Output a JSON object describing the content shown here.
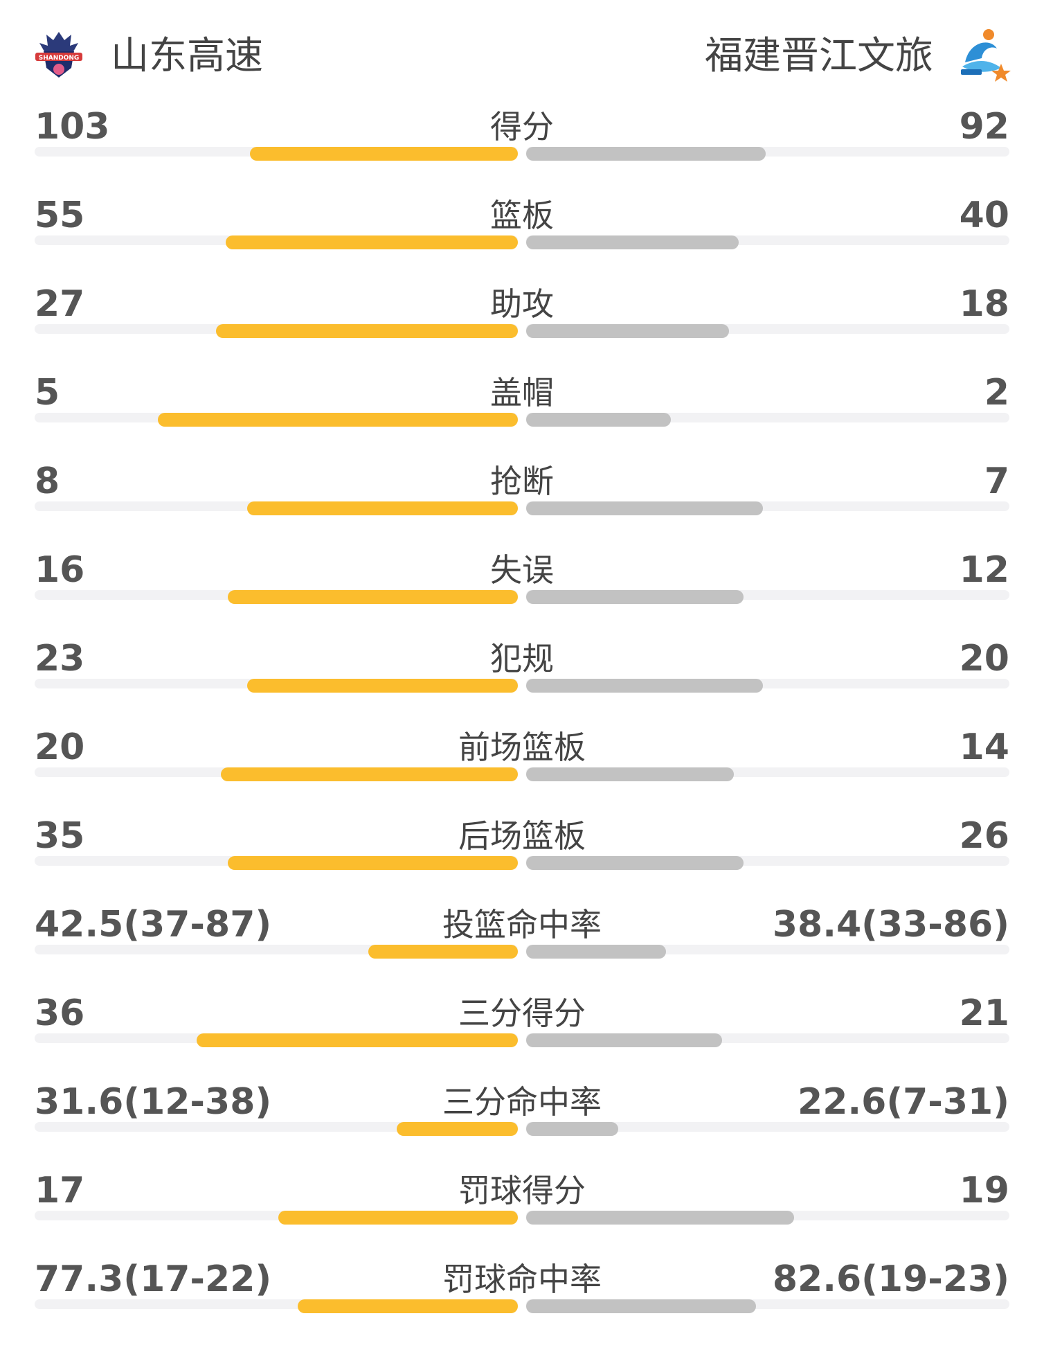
{
  "teams": {
    "home": {
      "name": "山东高速",
      "logo_icon": "shandong-dragon-logo",
      "color": "#fbbd2d"
    },
    "away": {
      "name": "福建晋江文旅",
      "logo_icon": "fujian-shark-logo",
      "color": "#c2c2c2"
    }
  },
  "stats": [
    {
      "label": "得分",
      "home": "103",
      "away": "92",
      "home_bar": 0.555,
      "away_bar": 0.495
    },
    {
      "label": "篮板",
      "home": "55",
      "away": "40",
      "home_bar": 0.605,
      "away_bar": 0.44
    },
    {
      "label": "助攻",
      "home": "27",
      "away": "18",
      "home_bar": 0.625,
      "away_bar": 0.42
    },
    {
      "label": "盖帽",
      "home": "5",
      "away": "2",
      "home_bar": 0.745,
      "away_bar": 0.3
    },
    {
      "label": "抢断",
      "home": "8",
      "away": "7",
      "home_bar": 0.56,
      "away_bar": 0.49
    },
    {
      "label": "失误",
      "home": "16",
      "away": "12",
      "home_bar": 0.6,
      "away_bar": 0.45
    },
    {
      "label": "犯规",
      "home": "23",
      "away": "20",
      "home_bar": 0.56,
      "away_bar": 0.49
    },
    {
      "label": "前场篮板",
      "home": "20",
      "away": "14",
      "home_bar": 0.615,
      "away_bar": 0.43
    },
    {
      "label": "后场篮板",
      "home": "35",
      "away": "26",
      "home_bar": 0.6,
      "away_bar": 0.45
    },
    {
      "label": "投篮命中率",
      "home": "42.5(37-87)",
      "away": "38.4(33-86)",
      "home_bar": 0.31,
      "away_bar": 0.29
    },
    {
      "label": "三分得分",
      "home": "36",
      "away": "21",
      "home_bar": 0.665,
      "away_bar": 0.405
    },
    {
      "label": "三分命中率",
      "home": "31.6(12-38)",
      "away": "22.6(7-31)",
      "home_bar": 0.25,
      "away_bar": 0.19
    },
    {
      "label": "罚球得分",
      "home": "17",
      "away": "19",
      "home_bar": 0.495,
      "away_bar": 0.555
    },
    {
      "label": "罚球命中率",
      "home": "77.3(17-22)",
      "away": "82.6(19-23)",
      "home_bar": 0.455,
      "away_bar": 0.475
    }
  ]
}
